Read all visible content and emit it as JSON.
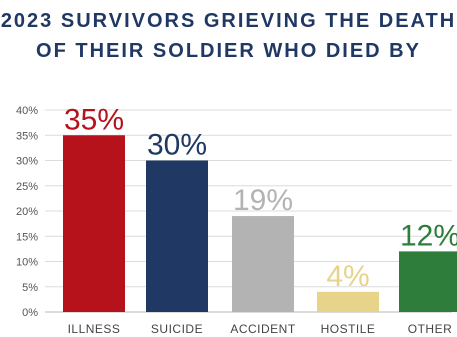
{
  "title_lines": [
    "2023 SURVIVORS GRIEVING THE DEATH",
    "OF THEIR SOLDIER WHO DIED BY"
  ],
  "chart_data": {
    "type": "bar",
    "title": "2023 SURVIVORS GRIEVING THE DEATH OF THEIR SOLDIER WHO DIED BY",
    "xlabel": "",
    "ylabel": "",
    "categories": [
      "ILLNESS",
      "SUICIDE",
      "ACCIDENT",
      "HOSTILE",
      "OTHER"
    ],
    "values": [
      35,
      30,
      19,
      4,
      12
    ],
    "value_labels": [
      "35%",
      "30%",
      "19%",
      "4%",
      "12%"
    ],
    "colors": [
      "#b5121b",
      "#1f3864",
      "#b3b3b3",
      "#e8d38a",
      "#2f7d3b"
    ],
    "ylim": [
      0,
      40
    ],
    "yticks": [
      0,
      5,
      10,
      15,
      20,
      25,
      30,
      35,
      40
    ],
    "ytick_labels": [
      "0%",
      "5%",
      "10%",
      "15%",
      "20%",
      "25%",
      "30%",
      "35%",
      "40%"
    ],
    "grid": true,
    "legend": "none"
  }
}
